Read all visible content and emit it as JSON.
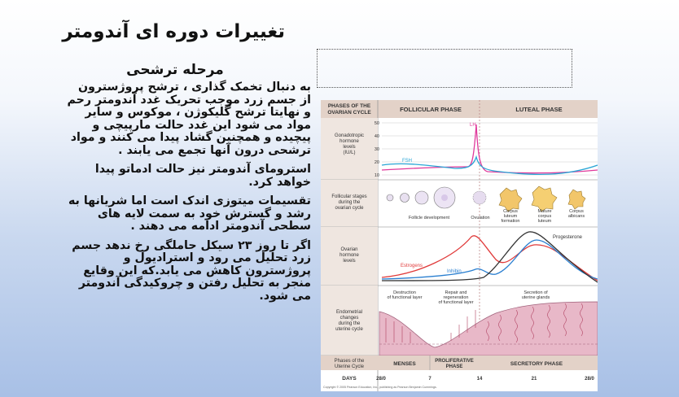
{
  "slide": {
    "title": "تغییرات دوره ای آندومتر",
    "subtitle": "مرحله ترشحی",
    "paragraphs": [
      "به دنبال تخمک گذاری ، ترشح پروژسترون از جسم زرد موجب تحریک غدد آندومتر رحم و نهایتا ترشح گلیکوژن ، موکوس و سایر مواد می شود این غدد حالت مارپیچی و پیچیده و همچنین گشاد پیدا می کنند و مواد ترشحی درون  آنها تجمع می یابند .",
      "استرومای آندومتر نیز حالت ادماتو پیدا خواهد کرد.",
      "تقسیمات میتوزی اندک است اما شریانها به رشد  و گسترش خود به سمت لایه های سطحی آندومتر ادامه می دهند .",
      "اگر تا روز ۲۳ سیکل حاملگی رخ ندهد جسم زرد تحلیل می رود و استرادیول و پروژسترون کاهش می یابد.که این وقایع منجر به تحلیل رفتن و چروکیدگی آندومتر می شود."
    ]
  },
  "figure": {
    "phases_header": [
      "PHASES OF THE",
      "OVARIAN CYCLE"
    ],
    "follicular_phase": "FOLLICULAR PHASE",
    "luteal_phase": "LUTEAL PHASE",
    "gonadotropic_label": [
      "Gonadotropic",
      "hormone",
      "levels",
      "(IU/L)"
    ],
    "y_ticks": [
      "50",
      "40",
      "30",
      "20",
      "10"
    ],
    "lh_label": "LH",
    "fsh_label": "FSH",
    "follicular_stages_label": [
      "Follicular stages",
      "during the",
      "ovarian cycle"
    ],
    "follicle_development": "Follicle development",
    "ovulation": "Ovulation",
    "corpus_luteum_formation": [
      "Corpus",
      "luteum",
      "formation"
    ],
    "mature_corpus_luteum": [
      "Mature",
      "corpus",
      "luteum"
    ],
    "corpus_albicans": [
      "Corpus",
      "albicans"
    ],
    "ovarian_hormone_label": [
      "Ovarian",
      "hormone",
      "levels"
    ],
    "progesterone": "Progesterone",
    "estrogens": "Estrogens",
    "inhibin": "Inhibin",
    "endometrial_label": [
      "Endometrial",
      "changes",
      "during the",
      "uterine cycle"
    ],
    "destruction": [
      "Destruction",
      "of functional layer"
    ],
    "repair": [
      "Repair and",
      "regeneration",
      "of functional layer"
    ],
    "secretion": [
      "Secretion of",
      "uterine glands"
    ],
    "uterine_phases_label": [
      "Phases of the",
      "Uterine Cycle"
    ],
    "menses": "MENSES",
    "proliferative": [
      "PROLIFERATIVE",
      "PHASE"
    ],
    "secretory": "SECRETORY PHASE",
    "days_label": "DAYS",
    "days": [
      "28/0",
      "7",
      "14",
      "21",
      "28/0"
    ],
    "copyright": "Copyright © 2005 Pearson Education, Inc., publishing as Pearson Benjamin Cummings.",
    "colors": {
      "lh": "#e0399b",
      "fsh": "#2aa6d6",
      "estrogens": "#e03a3a",
      "inhibin": "#2a7fd0",
      "progesterone": "#333333",
      "header": "#e3d2c8"
    }
  }
}
